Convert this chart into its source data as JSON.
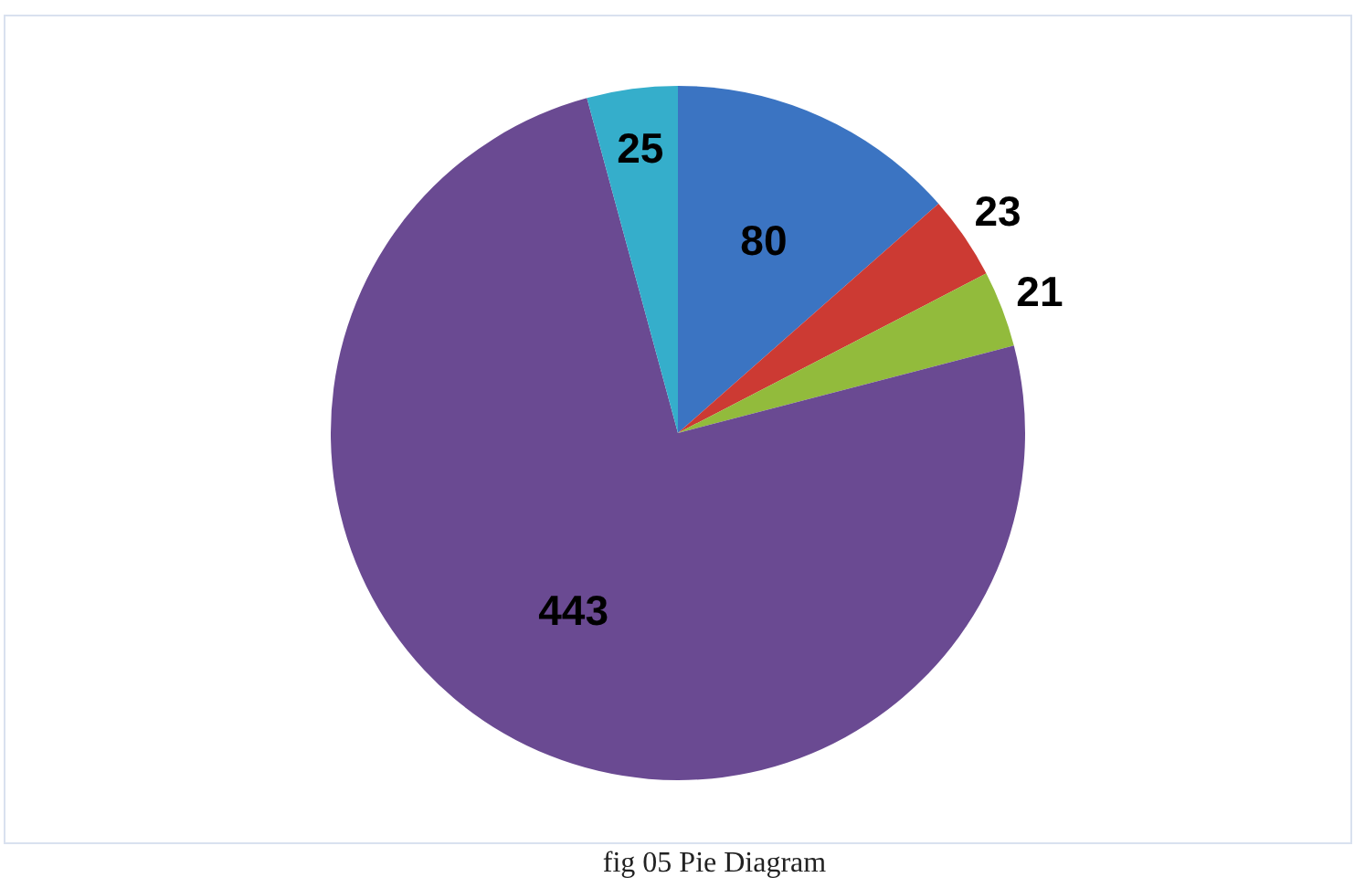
{
  "chart_data": {
    "type": "pie",
    "categories": [
      null,
      null,
      null,
      null,
      null
    ],
    "values": [
      80,
      23,
      21,
      443,
      25
    ],
    "colors": [
      "#3b74c2",
      "#cc3a33",
      "#92bb3c",
      "#6a4a92",
      "#35aecb"
    ],
    "data_labels": true,
    "legend": false,
    "annotations": [
      "fig 05 Pie Diagram"
    ]
  }
}
